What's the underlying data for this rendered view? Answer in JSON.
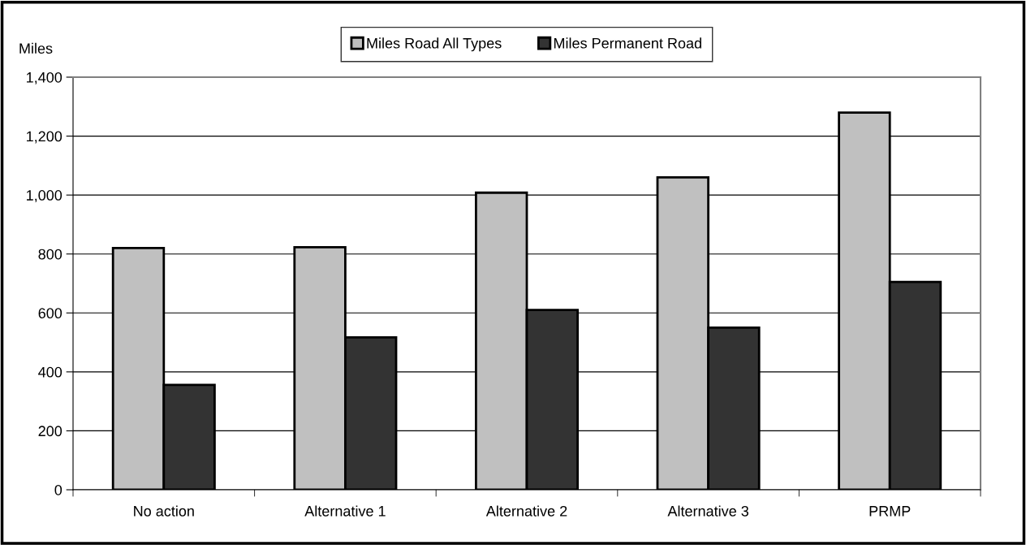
{
  "chart_data": {
    "type": "bar",
    "ylabel": "Miles",
    "categories": [
      "No action",
      "Alternative 1",
      "Alternative 2",
      "Alternative 3",
      "PRMP"
    ],
    "series": [
      {
        "name": "Miles Road All Types",
        "color": "#c0c0c0",
        "values": [
          820,
          823,
          1008,
          1060,
          1280
        ]
      },
      {
        "name": "Miles Permanent Road",
        "color": "#333333",
        "values": [
          356,
          517,
          610,
          550,
          705
        ]
      }
    ],
    "ylim": [
      0,
      1400
    ],
    "yticks": [
      0,
      200,
      400,
      600,
      800,
      {
        "value": 1000,
        "label": "1,000"
      },
      {
        "value": 1200,
        "label": "1,200"
      },
      {
        "value": 1400,
        "label": "1,400"
      }
    ],
    "grid": "y",
    "legend": "top"
  }
}
